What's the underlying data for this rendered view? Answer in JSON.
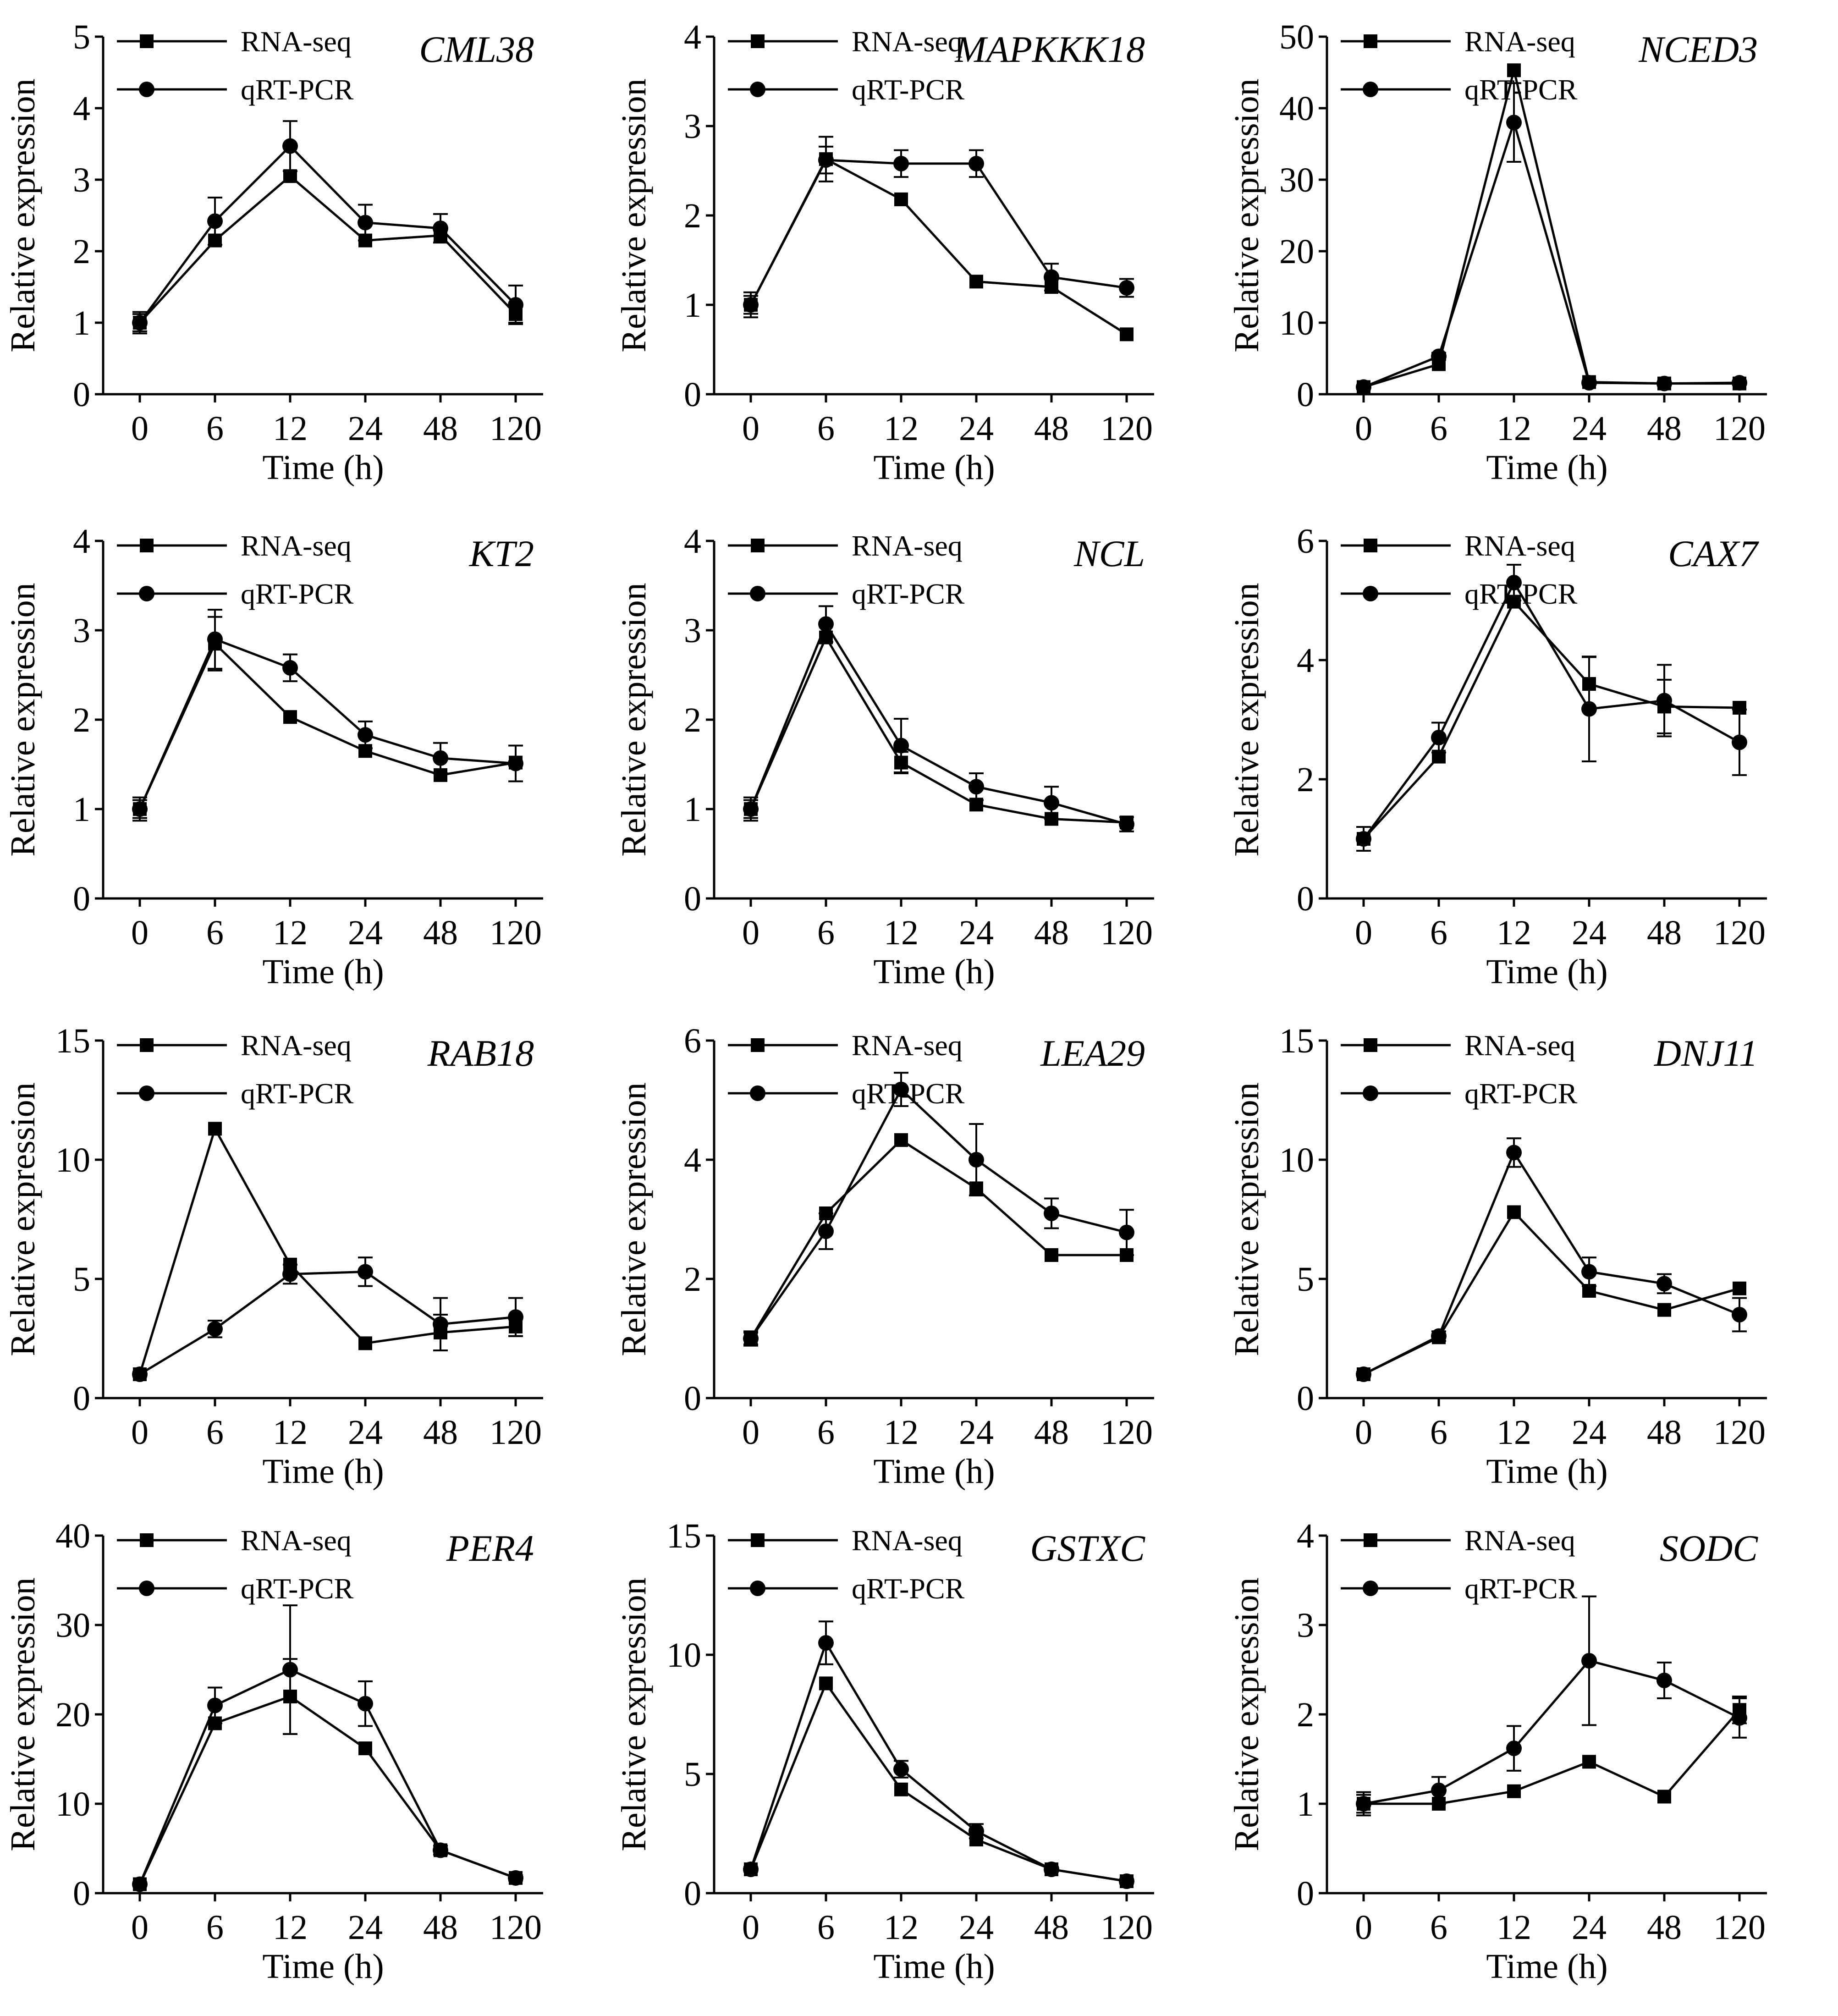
{
  "chart_data": [
    {
      "type": "line",
      "title": "CML38",
      "xlabel": "Time (h)",
      "ylabel": "Relative expression",
      "categories": [
        "0",
        "6",
        "12",
        "24",
        "48",
        "120"
      ],
      "ylim": [
        0,
        5
      ],
      "yticks": [
        0,
        1,
        2,
        3,
        4,
        5
      ],
      "series": [
        {
          "name": "RNA-seq",
          "marker": "square",
          "values": [
            1.0,
            2.15,
            3.05,
            2.15,
            2.22,
            1.12
          ],
          "errors": [
            0.15,
            0,
            0,
            0,
            0,
            0.12
          ]
        },
        {
          "name": "qRT-PCR",
          "marker": "circle",
          "values": [
            1.0,
            2.42,
            3.47,
            2.4,
            2.32,
            1.25
          ],
          "errors": [
            0.12,
            0.33,
            0.35,
            0.25,
            0.2,
            0.27
          ]
        }
      ]
    },
    {
      "type": "line",
      "title": "MAPKKK18",
      "xlabel": "Time (h)",
      "ylabel": "Relative expression",
      "categories": [
        "0",
        "6",
        "12",
        "24",
        "48",
        "120"
      ],
      "ylim": [
        0,
        4
      ],
      "yticks": [
        0,
        1,
        2,
        3,
        4
      ],
      "series": [
        {
          "name": "RNA-seq",
          "marker": "square",
          "values": [
            1.0,
            2.63,
            2.18,
            1.26,
            1.2,
            0.67
          ],
          "errors": [
            0.14,
            0.25,
            0,
            0,
            0,
            0
          ]
        },
        {
          "name": "qRT-PCR",
          "marker": "circle",
          "values": [
            1.0,
            2.62,
            2.58,
            2.58,
            1.31,
            1.19
          ],
          "errors": [
            0.1,
            0.15,
            0.15,
            0.15,
            0.15,
            0.1
          ]
        }
      ]
    },
    {
      "type": "line",
      "title": "NCED3",
      "xlabel": "Time (h)",
      "ylabel": "Relative expression",
      "categories": [
        "0",
        "6",
        "12",
        "24",
        "48",
        "120"
      ],
      "ylim": [
        0,
        50
      ],
      "yticks": [
        0,
        10,
        20,
        30,
        40,
        50
      ],
      "series": [
        {
          "name": "RNA-seq",
          "marker": "square",
          "values": [
            1.0,
            4.2,
            45.3,
            1.7,
            1.5,
            1.5
          ],
          "errors": [
            0,
            0,
            0,
            0,
            0,
            0
          ]
        },
        {
          "name": "qRT-PCR",
          "marker": "circle",
          "values": [
            1.0,
            5.3,
            38.0,
            1.6,
            1.5,
            1.6
          ],
          "errors": [
            0.2,
            0.5,
            5.5,
            0.2,
            0.2,
            0.2
          ]
        }
      ]
    },
    {
      "type": "line",
      "title": "KT2",
      "xlabel": "Time (h)",
      "ylabel": "Relative expression",
      "categories": [
        "0",
        "6",
        "12",
        "24",
        "48",
        "120"
      ],
      "ylim": [
        0,
        4
      ],
      "yticks": [
        0,
        1,
        2,
        3,
        4
      ],
      "series": [
        {
          "name": "RNA-seq",
          "marker": "square",
          "values": [
            1.0,
            2.85,
            2.03,
            1.65,
            1.38,
            1.52
          ],
          "errors": [
            0.13,
            0.3,
            0,
            0,
            0,
            0
          ]
        },
        {
          "name": "qRT-PCR",
          "marker": "circle",
          "values": [
            1.0,
            2.9,
            2.58,
            1.83,
            1.57,
            1.51
          ],
          "errors": [
            0.1,
            0.33,
            0.15,
            0.15,
            0.17,
            0.2
          ]
        }
      ]
    },
    {
      "type": "line",
      "title": "NCL",
      "xlabel": "Time (h)",
      "ylabel": "Relative expression",
      "categories": [
        "0",
        "6",
        "12",
        "24",
        "48",
        "120"
      ],
      "ylim": [
        0,
        4
      ],
      "yticks": [
        0,
        1,
        2,
        3,
        4
      ],
      "series": [
        {
          "name": "RNA-seq",
          "marker": "square",
          "values": [
            1.0,
            2.92,
            1.52,
            1.05,
            0.89,
            0.85
          ],
          "errors": [
            0.13,
            0,
            0.12,
            0,
            0,
            0
          ]
        },
        {
          "name": "qRT-PCR",
          "marker": "circle",
          "values": [
            1.0,
            3.07,
            1.71,
            1.25,
            1.07,
            0.83
          ],
          "errors": [
            0.1,
            0.2,
            0.3,
            0.15,
            0.18,
            0.08
          ]
        }
      ]
    },
    {
      "type": "line",
      "title": "CAX7",
      "xlabel": "Time (h)",
      "ylabel": "Relative expression",
      "categories": [
        "0",
        "6",
        "12",
        "24",
        "48",
        "120"
      ],
      "ylim": [
        0,
        6
      ],
      "yticks": [
        0,
        2,
        4,
        6
      ],
      "series": [
        {
          "name": "RNA-seq",
          "marker": "square",
          "values": [
            1.0,
            2.38,
            4.98,
            3.6,
            3.22,
            3.2
          ],
          "errors": [
            0.2,
            0,
            0,
            0.45,
            0.45,
            0
          ]
        },
        {
          "name": "qRT-PCR",
          "marker": "circle",
          "values": [
            1.0,
            2.7,
            5.3,
            3.18,
            3.32,
            2.62
          ],
          "errors": [
            0.2,
            0.25,
            0.3,
            0.88,
            0.6,
            0.55
          ]
        }
      ]
    },
    {
      "type": "line",
      "title": "RAB18",
      "xlabel": "Time (h)",
      "ylabel": "Relative expression",
      "categories": [
        "0",
        "6",
        "12",
        "24",
        "48",
        "120"
      ],
      "ylim": [
        0,
        15
      ],
      "yticks": [
        0,
        5,
        10,
        15
      ],
      "series": [
        {
          "name": "RNA-seq",
          "marker": "square",
          "values": [
            1.0,
            11.3,
            5.6,
            2.3,
            2.75,
            3.0
          ],
          "errors": [
            0,
            0,
            0,
            0,
            0.75,
            0.4
          ]
        },
        {
          "name": "qRT-PCR",
          "marker": "circle",
          "values": [
            1.0,
            2.9,
            5.2,
            5.3,
            3.1,
            3.4
          ],
          "errors": [
            0.1,
            0.35,
            0.4,
            0.6,
            1.1,
            0.8
          ]
        }
      ]
    },
    {
      "type": "line",
      "title": "LEA29",
      "xlabel": "Time (h)",
      "ylabel": "Relative expression",
      "categories": [
        "0",
        "6",
        "12",
        "24",
        "48",
        "120"
      ],
      "ylim": [
        0,
        6
      ],
      "yticks": [
        0,
        2,
        4,
        6
      ],
      "series": [
        {
          "name": "RNA-seq",
          "marker": "square",
          "values": [
            1.0,
            3.1,
            4.33,
            3.52,
            2.4,
            2.4
          ],
          "errors": [
            0.12,
            0,
            0,
            0,
            0,
            0
          ]
        },
        {
          "name": "qRT-PCR",
          "marker": "circle",
          "values": [
            1.0,
            2.8,
            5.18,
            4.0,
            3.1,
            2.78
          ],
          "errors": [
            0.1,
            0.3,
            0.28,
            0.6,
            0.25,
            0.38
          ]
        }
      ]
    },
    {
      "type": "line",
      "title": "DNJ11",
      "xlabel": "Time (h)",
      "ylabel": "Relative expression",
      "categories": [
        "0",
        "6",
        "12",
        "24",
        "48",
        "120"
      ],
      "ylim": [
        0,
        15
      ],
      "yticks": [
        0,
        5,
        10,
        15
      ],
      "series": [
        {
          "name": "RNA-seq",
          "marker": "square",
          "values": [
            1.0,
            2.55,
            7.8,
            4.5,
            3.7,
            4.6
          ],
          "errors": [
            0,
            0,
            0,
            0,
            0,
            0
          ]
        },
        {
          "name": "qRT-PCR",
          "marker": "circle",
          "values": [
            1.0,
            2.6,
            10.3,
            5.3,
            4.8,
            3.5
          ],
          "errors": [
            0.1,
            0.2,
            0.6,
            0.6,
            0.4,
            0.7
          ]
        }
      ]
    },
    {
      "type": "line",
      "title": "PER4",
      "xlabel": "Time (h)",
      "ylabel": "Relative expression",
      "categories": [
        "0",
        "6",
        "12",
        "24",
        "48",
        "120"
      ],
      "ylim": [
        0,
        40
      ],
      "yticks": [
        0,
        10,
        20,
        30,
        40
      ],
      "series": [
        {
          "name": "RNA-seq",
          "marker": "square",
          "values": [
            1.0,
            19.0,
            22.0,
            16.2,
            4.8,
            1.7
          ],
          "errors": [
            0,
            0,
            4.2,
            0,
            0,
            0
          ]
        },
        {
          "name": "qRT-PCR",
          "marker": "circle",
          "values": [
            1.0,
            21.0,
            25.0,
            21.2,
            4.8,
            1.7
          ],
          "errors": [
            0.2,
            2.0,
            7.2,
            2.5,
            0.5,
            0.3
          ]
        }
      ]
    },
    {
      "type": "line",
      "title": "GSTXC",
      "xlabel": "Time (h)",
      "ylabel": "Relative expression",
      "categories": [
        "0",
        "6",
        "12",
        "24",
        "48",
        "120"
      ],
      "ylim": [
        0,
        15
      ],
      "yticks": [
        0,
        5,
        10,
        15
      ],
      "series": [
        {
          "name": "RNA-seq",
          "marker": "square",
          "values": [
            1.0,
            8.8,
            4.35,
            2.25,
            1.0,
            0.5
          ],
          "errors": [
            0,
            0,
            0,
            0,
            0,
            0
          ]
        },
        {
          "name": "qRT-PCR",
          "marker": "circle",
          "values": [
            1.0,
            10.5,
            5.2,
            2.6,
            1.0,
            0.5
          ],
          "errors": [
            0.1,
            0.9,
            0.35,
            0.3,
            0.1,
            0.1
          ]
        }
      ]
    },
    {
      "type": "line",
      "title": "SODC",
      "xlabel": "Time (h)",
      "ylabel": "Relative expression",
      "categories": [
        "0",
        "6",
        "12",
        "24",
        "48",
        "120"
      ],
      "ylim": [
        0,
        4
      ],
      "yticks": [
        0,
        1,
        2,
        3,
        4
      ],
      "series": [
        {
          "name": "RNA-seq",
          "marker": "square",
          "values": [
            1.0,
            1.0,
            1.14,
            1.47,
            1.08,
            2.05
          ],
          "errors": [
            0.13,
            0,
            0,
            0,
            0,
            0.15
          ]
        },
        {
          "name": "qRT-PCR",
          "marker": "circle",
          "values": [
            1.0,
            1.15,
            1.62,
            2.6,
            2.38,
            1.96
          ],
          "errors": [
            0.1,
            0.15,
            0.25,
            0.72,
            0.2,
            0.22
          ]
        }
      ]
    }
  ]
}
